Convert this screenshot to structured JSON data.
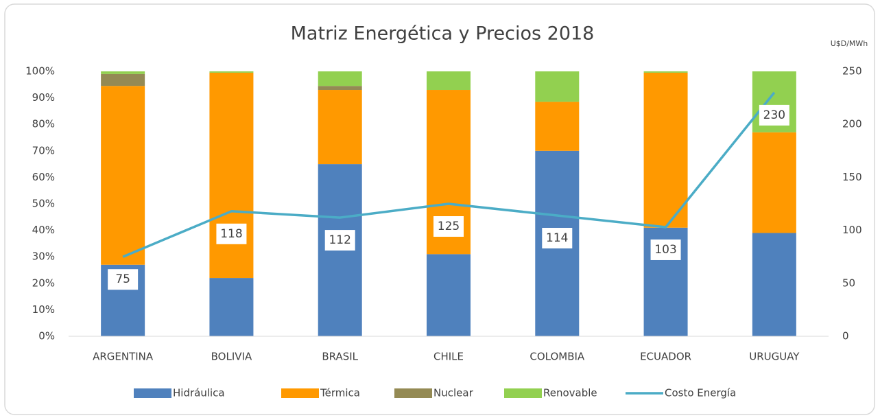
{
  "chart_data": {
    "type": "bar",
    "stacked": true,
    "title": "Matriz Energética y Precios 2018",
    "y2_label": "U$D/MWh",
    "categories": [
      "ARGENTINA",
      "BOLIVIA",
      "BRASIL",
      "CHILE",
      "COLOMBIA",
      "ECUADOR",
      "URUGUAY"
    ],
    "series": [
      {
        "name": "Hidráulica",
        "color": "#4f81bd",
        "values": [
          27,
          22,
          65,
          31,
          70,
          41,
          39
        ]
      },
      {
        "name": "Térmica",
        "color": "#ff9900",
        "values": [
          67.5,
          77.5,
          28,
          62,
          18.5,
          58.5,
          38
        ]
      },
      {
        "name": "Nuclear",
        "color": "#948a54",
        "values": [
          4.5,
          0,
          1.5,
          0,
          0,
          0,
          0
        ]
      },
      {
        "name": "Renovable",
        "color": "#92d050",
        "values": [
          1,
          0.5,
          5.5,
          7,
          11.5,
          0.5,
          23
        ]
      },
      {
        "name": "Costo Energía",
        "color": "#4bacc6",
        "type": "line",
        "axis": "y2",
        "data_labels": true,
        "values": [
          75,
          118,
          112,
          125,
          114,
          103,
          230
        ]
      }
    ],
    "ylim": [
      0,
      100
    ],
    "yticks": [
      {
        "value": 0,
        "label": "0%"
      },
      {
        "value": 10,
        "label": "10%"
      },
      {
        "value": 20,
        "label": "20%"
      },
      {
        "value": 30,
        "label": "30%"
      },
      {
        "value": 40,
        "label": "40%"
      },
      {
        "value": 50,
        "label": "50%"
      },
      {
        "value": 60,
        "label": "60%"
      },
      {
        "value": 70,
        "label": "70%"
      },
      {
        "value": 80,
        "label": "80%"
      },
      {
        "value": 90,
        "label": "90%"
      },
      {
        "value": 100,
        "label": "100%"
      }
    ],
    "y2lim": [
      0,
      250
    ],
    "y2ticks": [
      0,
      50,
      100,
      150,
      200,
      250
    ],
    "legend": "bottom"
  }
}
